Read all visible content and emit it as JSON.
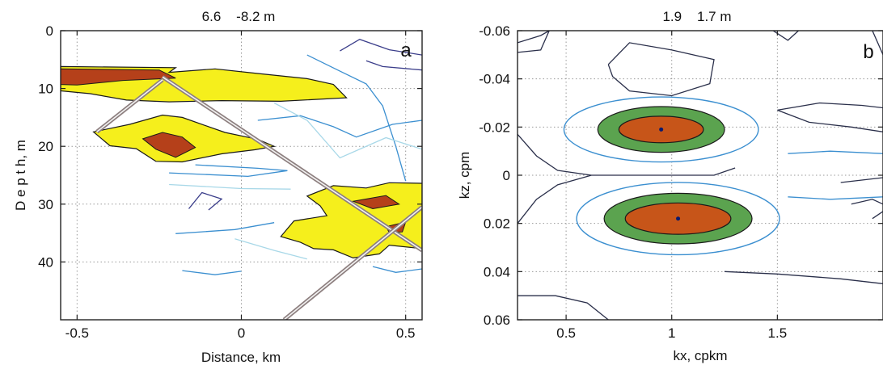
{
  "chart_data": [
    {
      "type": "heatmap",
      "panel_label": "a",
      "title": "6.6    -8.2 m",
      "xlabel": "Distance, km",
      "ylabel": "D e p t h, m",
      "xlim": [
        -0.55,
        0.55
      ],
      "ylim": [
        0,
        50
      ],
      "y_reversed": true,
      "xticks": [
        -0.5,
        0,
        0.5
      ],
      "xtick_labels": [
        "-0.5",
        "0",
        "0.5"
      ],
      "yticks": [
        0,
        10,
        20,
        30,
        40
      ],
      "ytick_labels": [
        "0",
        "10",
        "20",
        "30",
        "40"
      ],
      "grid": true,
      "fill_colors": {
        "low": "#f5ef1c",
        "high": "#b5401a"
      },
      "contour_colors": [
        "#3a3d8a",
        "#3b8fd0",
        "#a8d8e8"
      ],
      "filled_regions": [
        {
          "level": "low",
          "points": [
            [
              -0.55,
              6.2
            ],
            [
              -0.2,
              6.4
            ],
            [
              -0.22,
              7.2
            ],
            [
              -0.08,
              6.6
            ],
            [
              0.05,
              7.4
            ],
            [
              0.2,
              8.3
            ],
            [
              0.28,
              9.3
            ],
            [
              0.32,
              11.6
            ],
            [
              0.12,
              12.2
            ],
            [
              -0.06,
              12.1
            ],
            [
              -0.22,
              12.3
            ],
            [
              -0.35,
              12.0
            ],
            [
              -0.46,
              10.9
            ],
            [
              -0.55,
              10.4
            ]
          ]
        },
        {
          "level": "low",
          "points": [
            [
              -0.45,
              17.5
            ],
            [
              -0.34,
              16.2
            ],
            [
              -0.24,
              14.6
            ],
            [
              -0.18,
              15.0
            ],
            [
              -0.05,
              17.6
            ],
            [
              0.05,
              18.8
            ],
            [
              0.1,
              20.0
            ],
            [
              0.04,
              20.6
            ],
            [
              -0.06,
              21.3
            ],
            [
              -0.18,
              22.7
            ],
            [
              -0.26,
              22.6
            ],
            [
              -0.32,
              20.4
            ],
            [
              -0.4,
              19.9
            ]
          ]
        },
        {
          "level": "low",
          "points": [
            [
              0.2,
              28.6
            ],
            [
              0.28,
              26.8
            ],
            [
              0.38,
              27.2
            ],
            [
              0.45,
              26.3
            ],
            [
              0.55,
              26.4
            ],
            [
              0.55,
              37.7
            ],
            [
              0.45,
              37.1
            ],
            [
              0.42,
              38.6
            ],
            [
              0.34,
              39.3
            ],
            [
              0.28,
              37.9
            ],
            [
              0.22,
              37.7
            ],
            [
              0.18,
              36.6
            ],
            [
              0.12,
              35.6
            ],
            [
              0.16,
              32.9
            ],
            [
              0.26,
              32.0
            ],
            [
              0.24,
              30.3
            ]
          ]
        },
        {
          "level": "high",
          "points": [
            [
              -0.55,
              6.6
            ],
            [
              -0.25,
              6.8
            ],
            [
              -0.2,
              8.2
            ],
            [
              -0.36,
              8.6
            ],
            [
              -0.5,
              9.4
            ],
            [
              -0.55,
              9.3
            ]
          ]
        },
        {
          "level": "high",
          "points": [
            [
              -0.3,
              18.7
            ],
            [
              -0.24,
              17.6
            ],
            [
              -0.18,
              18.4
            ],
            [
              -0.14,
              20.2
            ],
            [
              -0.2,
              21.9
            ],
            [
              -0.26,
              20.5
            ]
          ]
        },
        {
          "level": "high",
          "points": [
            [
              0.34,
              29.5
            ],
            [
              0.44,
              28.5
            ],
            [
              0.48,
              30.0
            ],
            [
              0.4,
              30.8
            ]
          ]
        },
        {
          "level": "high",
          "points": [
            [
              0.44,
              33.9
            ],
            [
              0.5,
              33.1
            ],
            [
              0.49,
              34.8
            ],
            [
              0.45,
              34.9
            ]
          ]
        }
      ],
      "contours": [
        {
          "color": "#3a3d8a",
          "points": [
            [
              0.3,
              3.5
            ],
            [
              0.36,
              1.5
            ],
            [
              0.45,
              3.3
            ],
            [
              0.55,
              4.2
            ]
          ]
        },
        {
          "color": "#3a3d8a",
          "points": [
            [
              0.38,
              5.2
            ],
            [
              0.43,
              6.2
            ],
            [
              0.55,
              6.8
            ]
          ]
        },
        {
          "color": "#3b8fd0",
          "points": [
            [
              0.05,
              15.5
            ],
            [
              0.18,
              14.7
            ],
            [
              0.28,
              16.6
            ],
            [
              0.35,
              18.4
            ],
            [
              0.46,
              16.2
            ],
            [
              0.55,
              15.5
            ]
          ]
        },
        {
          "color": "#3b8fd0",
          "points": [
            [
              0.2,
              4.2
            ],
            [
              0.3,
              7.0
            ],
            [
              0.38,
              9.2
            ],
            [
              0.43,
              13.0
            ],
            [
              0.47,
              20.0
            ],
            [
              0.5,
              26.0
            ]
          ]
        },
        {
          "color": "#a8d8e8",
          "points": [
            [
              0.1,
              12.5
            ],
            [
              0.2,
              15.5
            ],
            [
              0.3,
              22.0
            ],
            [
              0.44,
              18.5
            ],
            [
              0.55,
              20.5
            ]
          ]
        },
        {
          "color": "#3b8fd0",
          "points": [
            [
              -0.14,
              23.2
            ],
            [
              0.05,
              23.8
            ],
            [
              0.14,
              24.2
            ],
            [
              0.02,
              25.2
            ],
            [
              -0.22,
              24.6
            ]
          ]
        },
        {
          "color": "#a8d8e8",
          "points": [
            [
              -0.22,
              26.6
            ],
            [
              0.0,
              27.3
            ],
            [
              0.15,
              27.4
            ]
          ]
        },
        {
          "color": "#3a3d8a",
          "points": [
            [
              -0.16,
              30.8
            ],
            [
              -0.12,
              28.0
            ],
            [
              -0.06,
              29.1
            ],
            [
              -0.1,
              31.0
            ]
          ]
        },
        {
          "color": "#3b8fd0",
          "points": [
            [
              -0.2,
              35.1
            ],
            [
              -0.02,
              34.4
            ],
            [
              0.1,
              33.2
            ]
          ]
        },
        {
          "color": "#a8d8e8",
          "points": [
            [
              -0.02,
              36.0
            ],
            [
              0.1,
              38.0
            ],
            [
              0.2,
              39.5
            ]
          ]
        },
        {
          "color": "#3b8fd0",
          "points": [
            [
              -0.18,
              41.5
            ],
            [
              -0.08,
              42.2
            ],
            [
              0.0,
              41.6
            ]
          ]
        },
        {
          "color": "#3b8fd0",
          "points": [
            [
              0.4,
              40.8
            ],
            [
              0.47,
              41.8
            ],
            [
              0.55,
              41.2
            ]
          ]
        }
      ],
      "track_lines": [
        [
          [
            -0.44,
            17.5
          ],
          [
            -0.24,
            8.5
          ]
        ],
        [
          [
            -0.24,
            8.0
          ],
          [
            0.55,
            38.0
          ]
        ],
        [
          [
            0.13,
            50.0
          ],
          [
            0.55,
            30.5
          ]
        ]
      ]
    },
    {
      "type": "heatmap",
      "panel_label": "b",
      "title": "1.9    1.7 m",
      "xlabel": "kx, cpkm",
      "ylabel": "kz, cpm",
      "xlim": [
        0.27,
        2.0
      ],
      "ylim": [
        -0.06,
        0.06
      ],
      "y_reversed": true,
      "xticks": [
        0.5,
        1,
        1.5
      ],
      "xtick_labels": [
        "0.5",
        "1",
        "1.5"
      ],
      "yticks": [
        -0.06,
        -0.04,
        -0.02,
        0,
        0.02,
        0.04,
        0.06
      ],
      "ytick_labels": [
        "-0.06",
        "-0.04",
        "-0.02",
        "0",
        "0.02",
        "0.04",
        "0.06"
      ],
      "grid": true,
      "fill_colors": {
        "outer": "#5ba34f",
        "inner": "#c75519",
        "peak": "#0a1a6e"
      },
      "contour_colors": {
        "dark": "#2a2f4a",
        "blue": "#3b8fd0"
      },
      "peaks": [
        {
          "kx": 0.95,
          "kz": -0.019,
          "inner_rx": 0.2,
          "inner_rz": 0.0055,
          "outer_rx": 0.3,
          "outer_rz": 0.0095,
          "blue_rx": 0.46,
          "blue_rz": 0.0135
        },
        {
          "kx": 1.03,
          "kz": 0.018,
          "inner_rx": 0.25,
          "inner_rz": 0.0065,
          "outer_rx": 0.35,
          "outer_rz": 0.0105,
          "blue_rx": 0.48,
          "blue_rz": 0.015
        }
      ],
      "contours": [
        {
          "color": "dark",
          "points": [
            [
              0.27,
              -0.055
            ],
            [
              0.38,
              -0.058
            ],
            [
              0.42,
              -0.06
            ]
          ]
        },
        {
          "color": "dark",
          "points": [
            [
              0.27,
              -0.051
            ],
            [
              0.38,
              -0.052
            ],
            [
              0.42,
              -0.06
            ]
          ]
        },
        {
          "color": "dark",
          "points": [
            [
              0.7,
              -0.046
            ],
            [
              0.8,
              -0.055
            ],
            [
              1.0,
              -0.052
            ],
            [
              1.2,
              -0.048
            ],
            [
              1.18,
              -0.038
            ],
            [
              1.0,
              -0.033
            ],
            [
              0.8,
              -0.035
            ],
            [
              0.72,
              -0.041
            ],
            [
              0.7,
              -0.046
            ]
          ]
        },
        {
          "color": "dark",
          "points": [
            [
              1.48,
              -0.06
            ],
            [
              1.55,
              -0.056
            ],
            [
              1.6,
              -0.06
            ]
          ]
        },
        {
          "color": "dark",
          "points": [
            [
              1.95,
              -0.06
            ],
            [
              2.0,
              -0.05
            ]
          ]
        },
        {
          "color": "dark",
          "points": [
            [
              1.5,
              -0.027
            ],
            [
              1.7,
              -0.03
            ],
            [
              1.9,
              -0.029
            ],
            [
              2.0,
              -0.028
            ],
            [
              2.0,
              -0.018
            ],
            [
              1.85,
              -0.02
            ],
            [
              1.65,
              -0.022
            ],
            [
              1.5,
              -0.027
            ]
          ]
        },
        {
          "color": "dark",
          "points": [
            [
              1.8,
              0.003
            ],
            [
              1.9,
              0.002
            ],
            [
              2.0,
              0.001
            ]
          ]
        },
        {
          "color": "dark",
          "points": [
            [
              1.85,
              0.012
            ],
            [
              1.95,
              0.01
            ],
            [
              2.0,
              0.012
            ]
          ]
        },
        {
          "color": "dark",
          "points": [
            [
              1.95,
              0.018
            ],
            [
              2.0,
              0.015
            ]
          ]
        },
        {
          "color": "dark",
          "points": [
            [
              0.27,
              -0.017
            ],
            [
              0.36,
              -0.008
            ],
            [
              0.46,
              -0.002
            ],
            [
              0.62,
              0.0
            ],
            [
              0.85,
              0.0
            ],
            [
              1.2,
              0.0
            ],
            [
              1.3,
              -0.003
            ],
            [
              1.2,
              0.0
            ],
            [
              0.85,
              0.0
            ],
            [
              0.62,
              0.0
            ],
            [
              0.46,
              0.004
            ],
            [
              0.36,
              0.01
            ],
            [
              0.27,
              0.02
            ]
          ]
        },
        {
          "color": "dark",
          "points": [
            [
              1.25,
              0.04
            ],
            [
              1.5,
              0.041
            ],
            [
              1.8,
              0.043
            ],
            [
              2.0,
              0.045
            ]
          ]
        },
        {
          "color": "dark",
          "points": [
            [
              0.27,
              0.05
            ],
            [
              0.45,
              0.05
            ],
            [
              0.6,
              0.053
            ],
            [
              0.7,
              0.06
            ]
          ]
        },
        {
          "color": "blue",
          "points": [
            [
              1.55,
              -0.009
            ],
            [
              1.75,
              -0.01
            ],
            [
              2.0,
              -0.009
            ]
          ]
        },
        {
          "color": "blue",
          "points": [
            [
              1.55,
              0.009
            ],
            [
              1.75,
              0.01
            ],
            [
              2.0,
              0.009
            ]
          ]
        }
      ]
    }
  ]
}
